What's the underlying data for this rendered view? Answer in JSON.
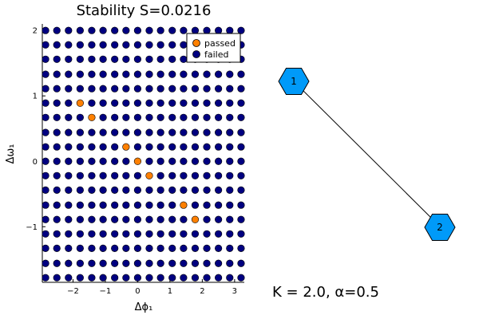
{
  "chart_data": {
    "type": "scatter",
    "title": "Stability S=0.0216",
    "xlabel": "Δϕ₁",
    "ylabel": "Δω₁",
    "xlim": [
      -2.95,
      3.3
    ],
    "ylim": [
      -1.85,
      2.1
    ],
    "xticks": [
      -2,
      -1,
      0,
      1,
      2,
      3
    ],
    "yticks": [
      -1,
      0,
      1,
      2
    ],
    "xtick_labels": [
      "−2",
      "−1",
      "0",
      "1",
      "2",
      "3"
    ],
    "ytick_labels": [
      "−1",
      "0",
      "1",
      "2"
    ],
    "grid": false,
    "legend_position": "top-right",
    "grid_samples": {
      "x": [
        -2.85,
        -2.5,
        -2.14,
        -1.78,
        -1.42,
        -1.07,
        -0.71,
        -0.36,
        0.0,
        0.36,
        0.71,
        1.07,
        1.42,
        1.78,
        2.14,
        2.5,
        2.85,
        3.2
      ],
      "y": [
        -1.78,
        -1.56,
        -1.33,
        -1.11,
        -0.89,
        -0.67,
        -0.44,
        -0.22,
        0.0,
        0.22,
        0.44,
        0.67,
        0.89,
        1.11,
        1.33,
        1.56,
        1.78,
        2.0
      ]
    },
    "series": [
      {
        "name": "passed",
        "color": "#ff8000",
        "points": [
          [
            -1.78,
            0.89
          ],
          [
            -1.42,
            0.67
          ],
          [
            -0.36,
            0.22
          ],
          [
            0.0,
            0.0
          ],
          [
            0.36,
            -0.22
          ],
          [
            1.42,
            -0.67
          ],
          [
            1.78,
            -0.89
          ]
        ]
      },
      {
        "name": "failed",
        "color": "#000080",
        "points": "all remaining grid_samples points"
      }
    ]
  },
  "graph": {
    "nodes": [
      {
        "id": "node-1",
        "label": "1",
        "color": "#009af9"
      },
      {
        "id": "node-2",
        "label": "2",
        "color": "#009af9"
      }
    ],
    "edges": [
      {
        "from": "node-1",
        "to": "node-2"
      }
    ]
  },
  "caption": "K = 2.0, α=0.5"
}
